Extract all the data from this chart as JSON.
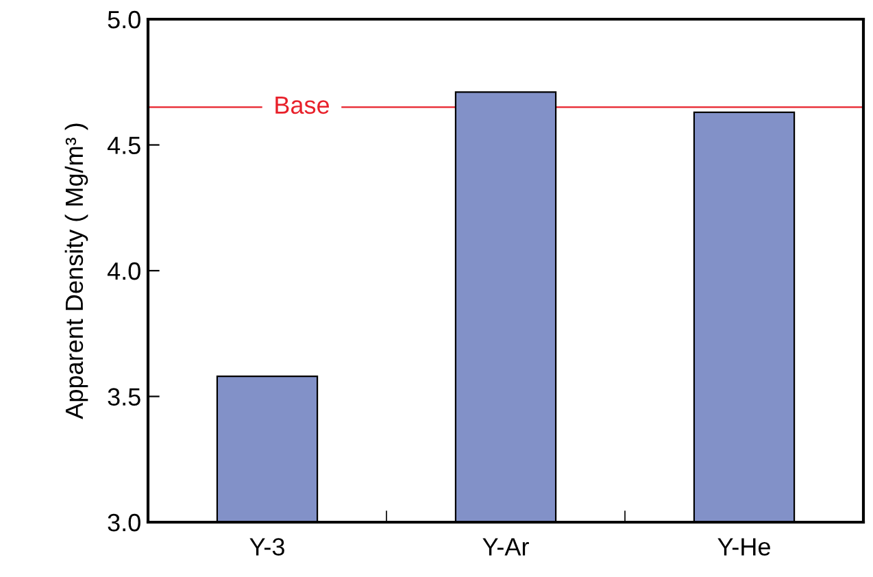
{
  "chart_data": {
    "type": "bar",
    "ylabel": "Apparent Density ( Mg/m³ )",
    "categories": [
      "Y-3",
      "Y-Ar",
      "Y-He"
    ],
    "values": [
      3.58,
      4.71,
      4.63
    ],
    "color": "#8291c8",
    "ylim": [
      3.0,
      5.0
    ],
    "yticks": [
      {
        "value": 3.0,
        "label": "3.0"
      },
      {
        "value": 3.5,
        "label": "3.5"
      },
      {
        "value": 4.0,
        "label": "4.0"
      },
      {
        "value": 4.5,
        "label": "4.5"
      },
      {
        "value": 5.0,
        "label": "5.0"
      }
    ],
    "ref_lines": [
      {
        "axis": "y",
        "value": 4.65,
        "label": "Base",
        "color": "#e8202a"
      }
    ],
    "grid": false,
    "legend": false
  }
}
